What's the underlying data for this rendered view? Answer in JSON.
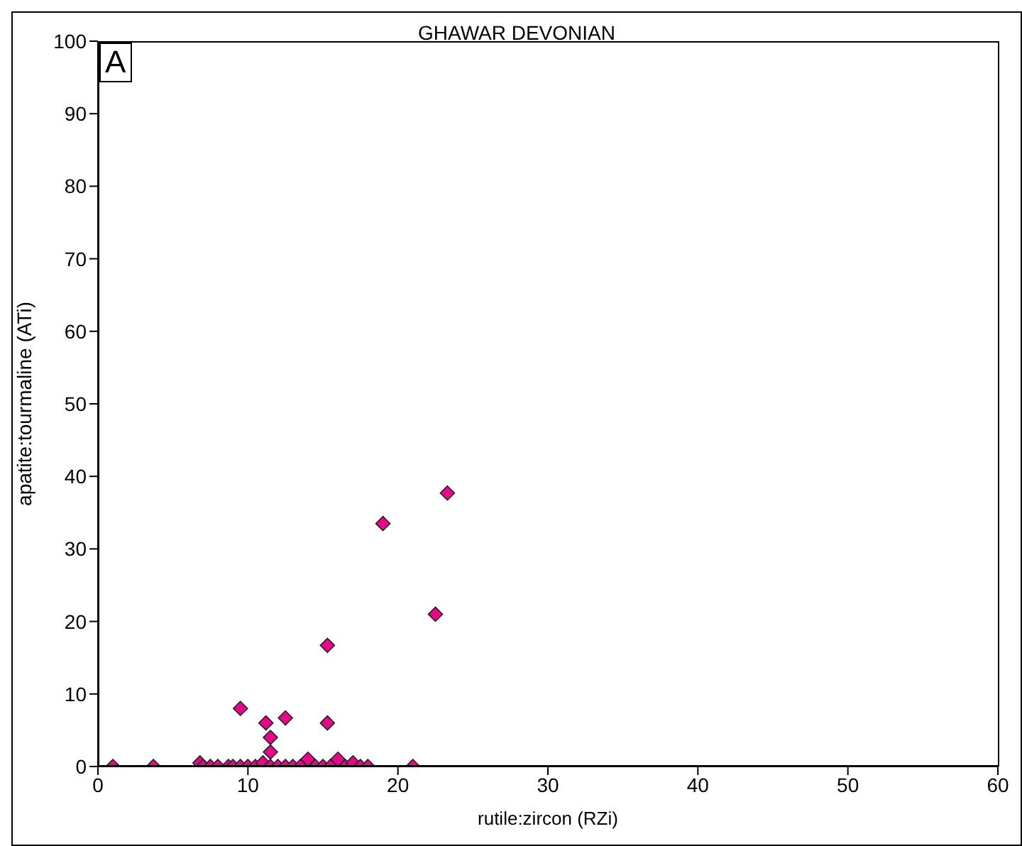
{
  "chart_data": {
    "type": "scatter",
    "title": "GHAWAR DEVONIAN",
    "xlabel": "rutile:zircon (RZi)",
    "ylabel": "apatite:tourmaline (ATi)",
    "annotations": [
      "A"
    ],
    "x": [
      1,
      3.7,
      6.8,
      7,
      7.5,
      8,
      8.7,
      9,
      9.5,
      10,
      10.5,
      11,
      11.5,
      12,
      12.5,
      13,
      13.5,
      14,
      14.5,
      15,
      15.5,
      16,
      16.5,
      17,
      17.5,
      18,
      21,
      9.5,
      11.2,
      12.5,
      15.3,
      11.5,
      11.5,
      15.3,
      19,
      22.5,
      23.3
    ],
    "values": [
      0,
      0,
      0.5,
      0,
      0,
      0,
      0,
      0,
      0,
      0,
      0,
      0.5,
      0,
      0,
      0,
      0,
      0,
      1,
      0,
      0,
      0,
      1,
      0,
      0.5,
      0,
      0,
      0,
      8,
      6,
      6.7,
      6,
      4,
      2,
      16.7,
      33.5,
      21,
      37.7
    ],
    "color": "#e8068a",
    "marker": "diamond",
    "grid": false,
    "xlim": [
      0,
      60
    ],
    "xticks": [
      0,
      10,
      20,
      30,
      40,
      50,
      60
    ],
    "ylim": [
      0,
      100
    ],
    "yticks": [
      0,
      10,
      20,
      30,
      40,
      50,
      60,
      70,
      80,
      90,
      100
    ]
  }
}
